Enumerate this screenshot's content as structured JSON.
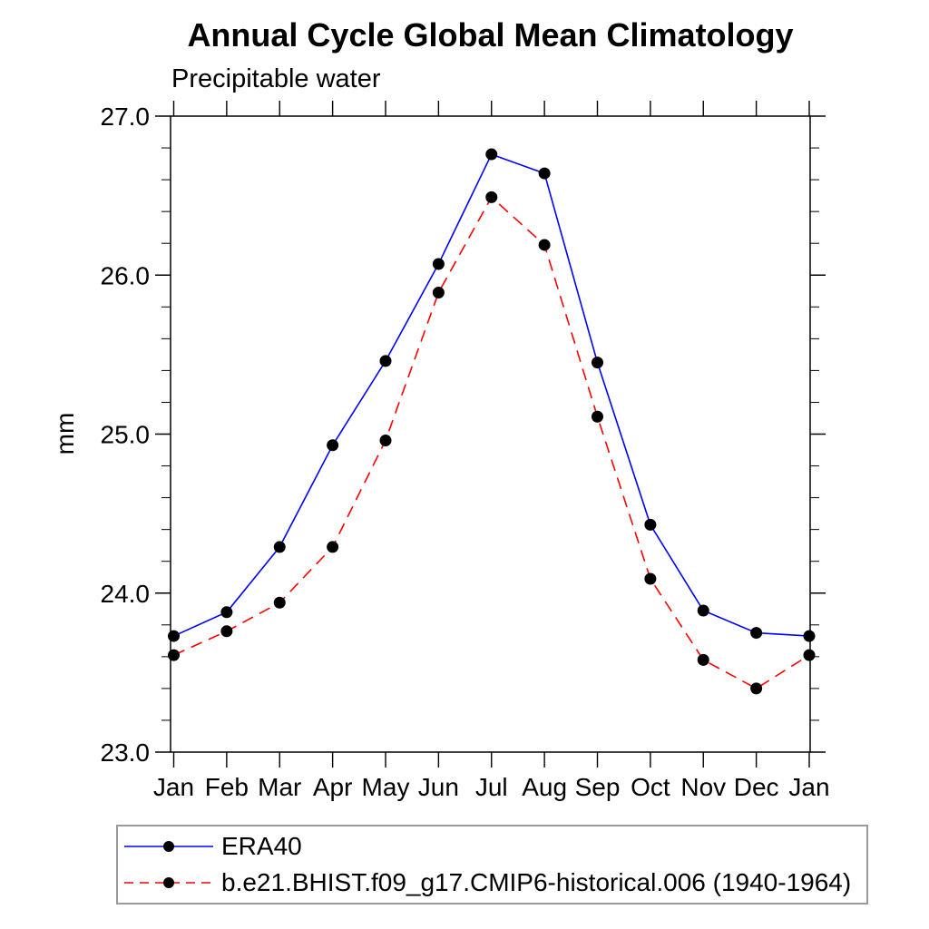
{
  "chart_data": {
    "type": "line",
    "title": "Annual Cycle Global Mean Climatology",
    "subtitle": "Precipitable water",
    "ylabel": "mm",
    "x_tick_labels": [
      "Jan",
      "Feb",
      "Mar",
      "Apr",
      "May",
      "Jun",
      "Jul",
      "Aug",
      "Sep",
      "Oct",
      "Nov",
      "Dec",
      "Jan"
    ],
    "ylim": [
      23.0,
      27.0
    ],
    "y_major_ticks": [
      23.0,
      24.0,
      25.0,
      26.0,
      27.0
    ],
    "y_tick_labels": [
      "23.0",
      "24.0",
      "25.0",
      "26.0",
      "27.0"
    ],
    "y_minor_step": 0.2,
    "grid": false,
    "legend_position": "bottom-left",
    "series": [
      {
        "id": "era40",
        "name": "ERA40",
        "color": "#0000ff",
        "line_style": "solid",
        "marker": "filled-circle",
        "marker_color": "#000000",
        "values": [
          23.73,
          23.88,
          24.29,
          24.93,
          25.46,
          26.07,
          26.76,
          26.64,
          25.45,
          24.43,
          23.89,
          23.75,
          23.73
        ]
      },
      {
        "id": "cmip6-historical-006",
        "name": "b.e21.BHIST.f09_g17.CMIP6-historical.006 (1940-1964)",
        "color": "#ff0000",
        "line_style": "dashed",
        "marker": "filled-circle",
        "marker_color": "#000000",
        "values": [
          23.61,
          23.76,
          23.94,
          24.29,
          24.96,
          25.89,
          26.49,
          26.19,
          25.11,
          24.09,
          23.58,
          23.4,
          23.61
        ]
      }
    ]
  }
}
